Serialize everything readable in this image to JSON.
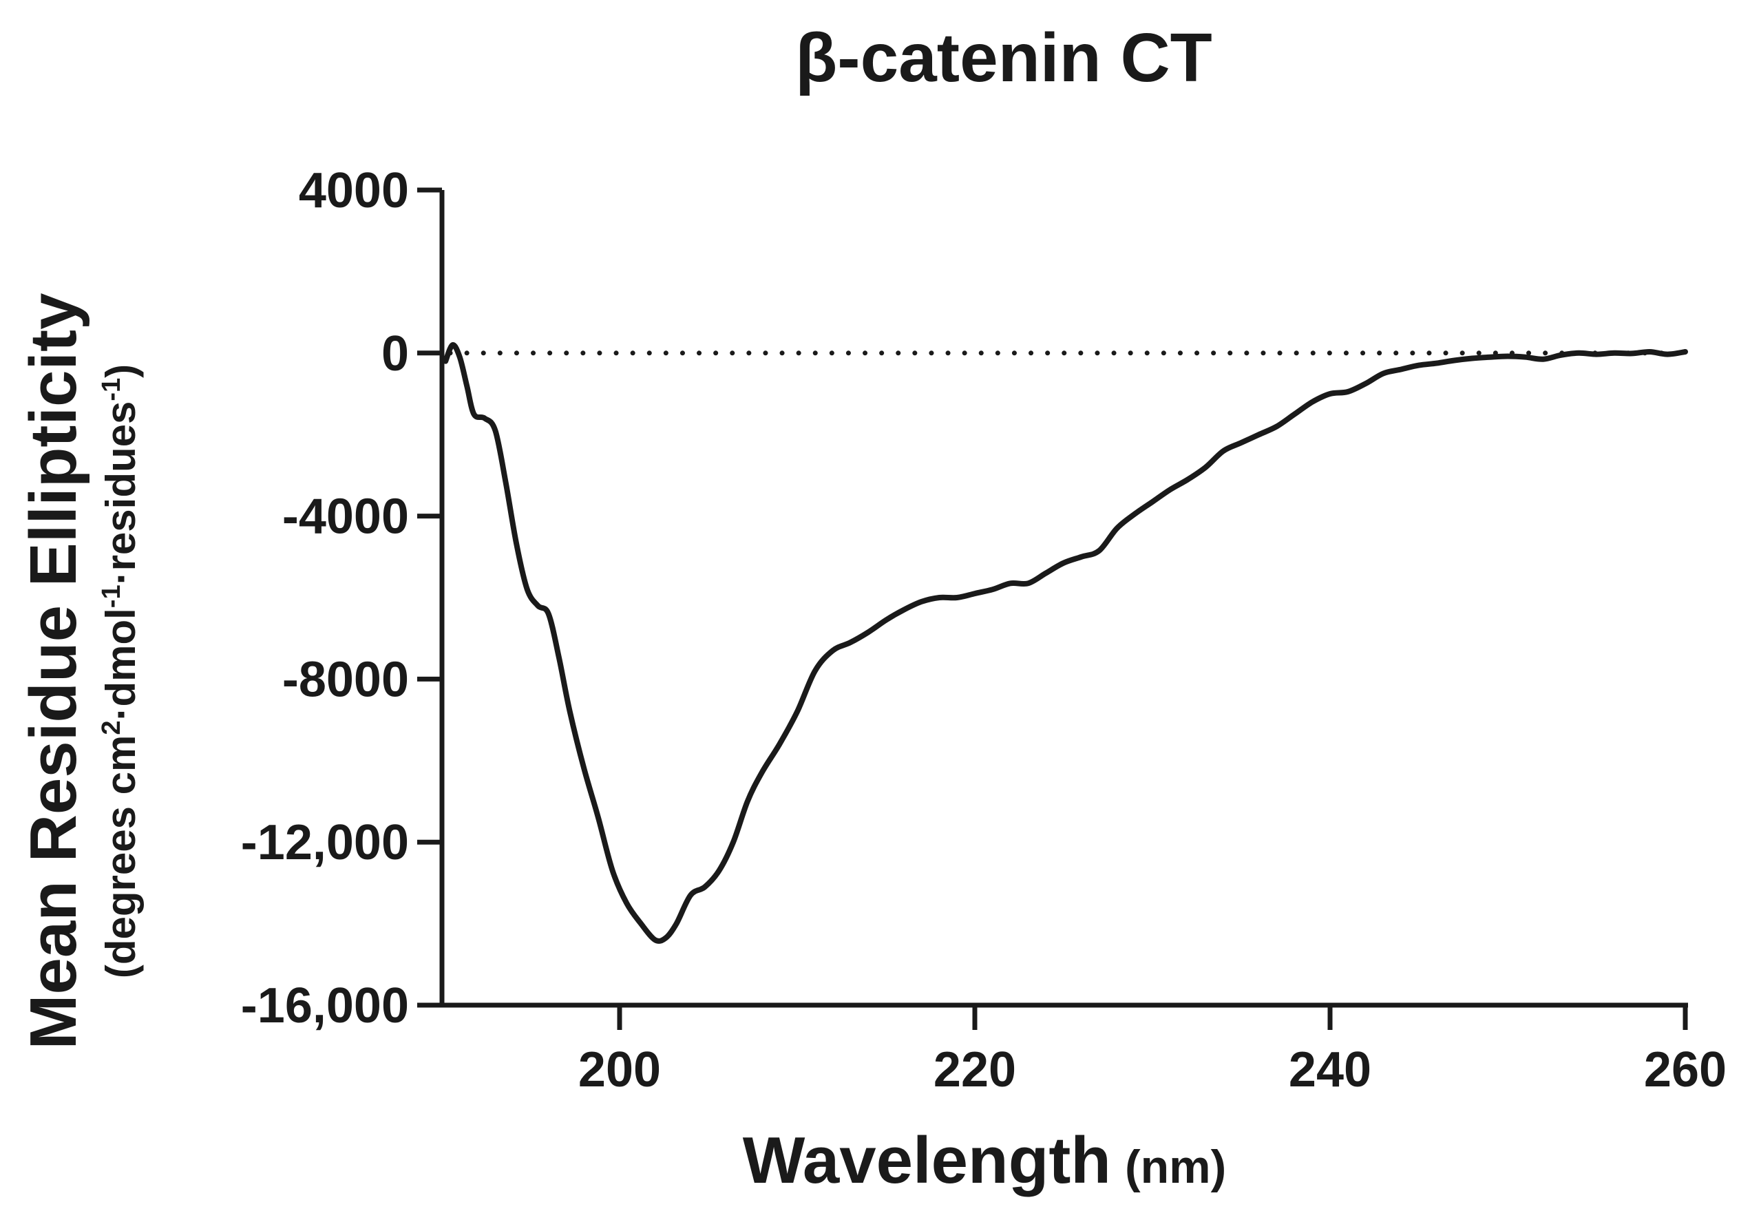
{
  "chart_data": {
    "type": "line",
    "title": "β-catenin CT",
    "xlabel": "Wavelength",
    "xlabel_unit": "(nm)",
    "ylabel": "Mean Residue Ellipticity",
    "ylabel_units": {
      "part1": "(degrees cm",
      "sup1": "2",
      "part2": "·dmol",
      "sup2": "-1",
      "part3": "·residues",
      "sup3": "-1",
      "part4": ")"
    },
    "xlim": [
      190,
      260
    ],
    "ylim": [
      -16000,
      4000
    ],
    "x_ticks": [
      200,
      220,
      240,
      260
    ],
    "x_tick_labels": [
      "200",
      "220",
      "240",
      "260"
    ],
    "y_ticks": [
      4000,
      0,
      -4000,
      -8000,
      -12000,
      -16000
    ],
    "y_tick_labels": [
      "4000",
      "0",
      "-4000",
      "-8000",
      "-12,000",
      "-16,000"
    ],
    "grid": false,
    "reference_line": {
      "y": 0,
      "style": "dotted"
    },
    "colors": {
      "line": "#1a1a1a",
      "axis": "#1a1a1a"
    },
    "series": [
      {
        "name": "β-catenin CT",
        "x": [
          190.2,
          190.6,
          191.0,
          191.4,
          191.8,
          192.4,
          193.0,
          193.6,
          194.2,
          194.8,
          195.4,
          196.0,
          196.6,
          197.2,
          198.0,
          198.8,
          199.6,
          200.4,
          201.2,
          202.0,
          202.6,
          203.2,
          204.0,
          204.8,
          205.6,
          206.4,
          207.2,
          208.0,
          209.0,
          210.0,
          211.0,
          212.0,
          213.0,
          214.0,
          215.0,
          216.0,
          217.0,
          218.0,
          219.0,
          220.0,
          221.0,
          222.0,
          223.0,
          224.0,
          225.0,
          226.0,
          227.0,
          228.0,
          229.0,
          230.0,
          231.0,
          232.0,
          233.0,
          234.0,
          235.0,
          236.0,
          237.0,
          238.0,
          239.0,
          240.0,
          241.0,
          242.0,
          243.0,
          244.0,
          245.0,
          246.0,
          247.0,
          248.0,
          249.0,
          250.0,
          251.0,
          252.0,
          253.0,
          254.0,
          255.0,
          256.0,
          257.0,
          258.0,
          259.0,
          260.0
        ],
        "y": [
          -200,
          200,
          -100,
          -800,
          -1500,
          -1600,
          -1900,
          -3200,
          -4700,
          -5800,
          -6200,
          -6400,
          -7500,
          -8800,
          -10200,
          -11400,
          -12700,
          -13500,
          -14000,
          -14400,
          -14350,
          -14000,
          -13300,
          -13100,
          -12700,
          -12000,
          -11000,
          -10300,
          -9600,
          -8800,
          -7800,
          -7300,
          -7100,
          -6850,
          -6550,
          -6300,
          -6100,
          -6000,
          -6000,
          -5900,
          -5800,
          -5650,
          -5650,
          -5400,
          -5150,
          -5000,
          -4850,
          -4300,
          -3950,
          -3650,
          -3350,
          -3100,
          -2800,
          -2400,
          -2200,
          -2000,
          -1800,
          -1500,
          -1200,
          -1000,
          -950,
          -750,
          -500,
          -400,
          -300,
          -250,
          -180,
          -130,
          -100,
          -80,
          -100,
          -150,
          -50,
          0,
          -30,
          0,
          -10,
          30,
          -30,
          30
        ]
      }
    ]
  }
}
